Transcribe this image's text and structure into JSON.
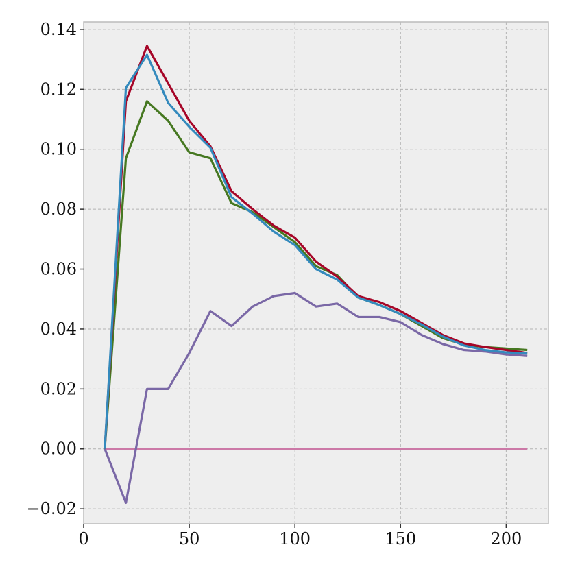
{
  "chart_data": {
    "type": "line",
    "title": "",
    "xlabel": "",
    "ylabel": "",
    "xlim": [
      0,
      220
    ],
    "ylim": [
      -0.025,
      0.1425
    ],
    "grid": true,
    "background": "#eeeeee",
    "x_ticks": [
      0,
      50,
      100,
      150,
      200
    ],
    "x_tick_labels": [
      "0",
      "50",
      "100",
      "150",
      "200"
    ],
    "y_ticks": [
      -0.02,
      0.0,
      0.02,
      0.04,
      0.06,
      0.08,
      0.1,
      0.12,
      0.14
    ],
    "y_tick_labels": [
      "−0.02",
      "0.00",
      "0.02",
      "0.04",
      "0.06",
      "0.08",
      "0.10",
      "0.12",
      "0.14"
    ],
    "x": [
      10,
      20,
      30,
      40,
      50,
      60,
      70,
      80,
      90,
      100,
      110,
      120,
      130,
      140,
      150,
      160,
      170,
      180,
      190,
      200,
      210
    ],
    "series": [
      {
        "color": "#a60628",
        "values": [
          0.0,
          0.116,
          0.1345,
          0.122,
          0.1095,
          0.101,
          0.086,
          0.08,
          0.0745,
          0.0705,
          0.0625,
          0.0575,
          0.051,
          0.049,
          0.046,
          0.042,
          0.038,
          0.0352,
          0.034,
          0.033,
          0.032
        ]
      },
      {
        "color": "#467821",
        "values": [
          0.0,
          0.097,
          0.116,
          0.1095,
          0.099,
          0.097,
          0.082,
          0.079,
          0.074,
          0.069,
          0.061,
          0.058,
          0.0505,
          0.048,
          0.045,
          0.041,
          0.037,
          0.0348,
          0.034,
          0.0335,
          0.033
        ]
      },
      {
        "color": "#348abd",
        "values": [
          0.0,
          0.1205,
          0.1315,
          0.1155,
          0.1075,
          0.1005,
          0.084,
          0.0785,
          0.0725,
          0.068,
          0.06,
          0.0565,
          0.0505,
          0.048,
          0.045,
          0.0415,
          0.0375,
          0.0345,
          0.033,
          0.0322,
          0.0318
        ]
      },
      {
        "color": "#7a68a6",
        "values": [
          0.0,
          -0.018,
          0.02,
          0.02,
          0.032,
          0.046,
          0.041,
          0.0475,
          0.051,
          0.052,
          0.0475,
          0.0485,
          0.044,
          0.044,
          0.0423,
          0.038,
          0.035,
          0.033,
          0.0325,
          0.0315,
          0.031
        ]
      },
      {
        "color": "#cf4457",
        "values": [
          0.0,
          0.0,
          0.0,
          0.0,
          0.0,
          0.0,
          0.0,
          0.0,
          0.0,
          0.0,
          0.0,
          0.0,
          0.0,
          0.0,
          0.0,
          0.0,
          0.0,
          0.0,
          0.0,
          0.0,
          0.0
        ]
      }
    ],
    "flat_line_color": "#cc79a7"
  }
}
